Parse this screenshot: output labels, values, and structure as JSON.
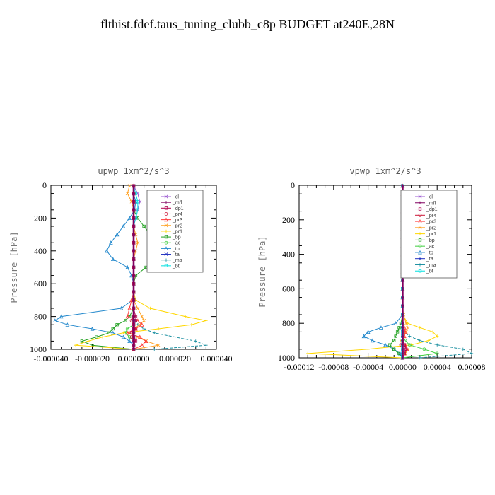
{
  "title": "flthist.fdef.taus_tuning_clubb_c8p  BUDGET at240E,28N",
  "legend_entries": [
    "_cl",
    "_mfl",
    "_dp1",
    "_pr4",
    "_pr3",
    "_pr2",
    "_pr1",
    "_bp",
    "_ac",
    "_tp",
    "_ta",
    "_ma",
    "_bt"
  ],
  "colors": {
    "_cl": "#9b59d0",
    "_mfl": "#800060",
    "_dp1": "#b00050",
    "_pr4": "#cc1a3a",
    "_pr3": "#ff3c3c",
    "_pr2": "#ffa020",
    "_pr1": "#ffd700",
    "_bp": "#20a020",
    "_ac": "#40d040",
    "_tp": "#2288cc",
    "_ta": "#2030c0",
    "_ma": "#1a8fa0",
    "_bt": "#00e0e0"
  },
  "chart_data": [
    {
      "type": "line",
      "title": "upwp   1xm^2/s^3",
      "ylabel": "Pressure [hPa]",
      "xlim": [
        -4e-05,
        4e-05
      ],
      "ylim": [
        1000,
        0
      ],
      "x_tick_labels": [
        "-0.000040",
        "-0.000020",
        "0.000000",
        "0.000020",
        "0.000040"
      ],
      "y_ticks": [
        0,
        200,
        400,
        600,
        800,
        1000
      ],
      "legend_position": "top-right",
      "pressure": [
        3,
        50,
        100,
        150,
        200,
        250,
        300,
        350,
        400,
        450,
        500,
        550,
        600,
        650,
        700,
        750,
        800,
        825,
        850,
        875,
        900,
        925,
        950,
        975,
        1000
      ],
      "series": [
        {
          "name": "_tp",
          "values": [
            0,
            0,
            1e-06,
            5e-07,
            -2e-06,
            -5e-06,
            -8e-06,
            -1.1e-05,
            -1.3e-05,
            -1e-05,
            -3e-06,
            -1e-06,
            0,
            0,
            -5e-07,
            -6e-06,
            -3.5e-05,
            -3.8e-05,
            -3.2e-05,
            -2e-05,
            -1e-05,
            -5e-06,
            -2e-06,
            0,
            0
          ]
        },
        {
          "name": "_bp",
          "values": [
            0,
            0,
            0,
            0,
            2e-06,
            5e-06,
            8e-06,
            1.3e-05,
            1.7e-05,
            1.5e-05,
            6e-06,
            1e-06,
            0,
            0,
            0,
            0,
            -2e-06,
            -4e-06,
            -8e-06,
            -1e-05,
            -1.2e-05,
            -1.8e-05,
            -2.5e-05,
            -2e-05,
            0
          ]
        },
        {
          "name": "_pr1",
          "values": [
            0,
            0,
            0,
            0,
            0,
            0,
            0,
            0,
            0,
            0,
            0,
            0,
            0,
            0,
            1e-06,
            8e-06,
            2.5e-05,
            3.5e-05,
            2.8e-05,
            1.2e-05,
            -5e-06,
            -1.5e-05,
            -2.2e-05,
            -2.8e-05,
            0
          ]
        },
        {
          "name": "_ma",
          "values": [
            0,
            0,
            0,
            0,
            0,
            0,
            0,
            0,
            0,
            0,
            0,
            0,
            0,
            0,
            0,
            0,
            0,
            0,
            2e-06,
            5e-06,
            1e-05,
            2e-05,
            3e-05,
            3.5e-05,
            1e-05
          ]
        },
        {
          "name": "_pr2",
          "values": [
            -2e-06,
            -3e-06,
            -1e-06,
            0,
            0,
            0,
            1e-06,
            2e-06,
            1e-06,
            0,
            0,
            0,
            0,
            0,
            0,
            2e-06,
            4e-06,
            5e-06,
            3e-06,
            0,
            -2e-06,
            2e-06,
            6e-06,
            1.2e-05,
            0
          ]
        },
        {
          "name": "_pr3",
          "values": [
            0,
            0,
            0,
            0,
            0,
            0,
            0,
            0,
            0,
            0,
            0,
            0,
            0,
            0,
            -1e-06,
            -2e-06,
            -3e-06,
            2e-06,
            4e-06,
            1e-06,
            -3e-06,
            3e-06,
            6e-06,
            4e-06,
            0
          ]
        },
        {
          "name": "_cl",
          "values": [
            0,
            2e-06,
            3e-06,
            2e-06,
            1e-06,
            0,
            0,
            0,
            0,
            0,
            0,
            0,
            0,
            0,
            0,
            0,
            0,
            0,
            0,
            0,
            0,
            0,
            0,
            0,
            0
          ]
        },
        {
          "name": "_ac",
          "values": [
            0,
            0,
            0,
            0,
            0,
            0,
            0,
            0,
            0,
            0,
            0,
            0,
            0,
            0,
            0,
            0,
            0,
            0,
            0,
            -3e-06,
            -4e-06,
            -2e-06,
            0,
            0,
            0
          ]
        },
        {
          "name": "_ta",
          "values": [
            0,
            0,
            0,
            0,
            0,
            0,
            0,
            0,
            0,
            0,
            0,
            0,
            0,
            0,
            0,
            0,
            0,
            0,
            0,
            0,
            0,
            0,
            0,
            0,
            0
          ]
        },
        {
          "name": "_bt",
          "values": [
            0,
            1e-06,
            2e-06,
            2e-06,
            1e-06,
            0,
            0,
            0,
            0,
            0,
            0,
            0,
            0,
            0,
            0,
            0,
            0,
            0,
            0,
            0,
            0,
            0,
            0,
            0,
            0
          ]
        },
        {
          "name": "_dp1",
          "values": [
            0,
            0,
            0,
            0,
            0,
            0,
            0,
            0,
            0,
            0,
            0,
            0,
            0,
            0,
            0,
            0,
            1e-06,
            1e-06,
            0,
            0,
            -1e-06,
            0,
            1e-06,
            0,
            0
          ]
        },
        {
          "name": "_pr4",
          "values": [
            0,
            0,
            0,
            0,
            0,
            0,
            0,
            0,
            0,
            0,
            0,
            0,
            0,
            0,
            0,
            0,
            0,
            -1e-06,
            0,
            1e-06,
            0,
            -1e-06,
            0,
            0,
            0
          ]
        },
        {
          "name": "_mfl",
          "values": [
            0,
            0,
            0,
            0,
            0,
            0,
            0,
            0,
            0,
            0,
            0,
            0,
            0,
            0,
            0,
            0,
            0,
            0,
            0,
            0,
            0,
            0,
            0,
            0,
            0
          ]
        }
      ]
    },
    {
      "type": "line",
      "title": "vpwp   1xm^2/s^3",
      "ylabel": "Pressure [hPa]",
      "xlim": [
        -0.00012,
        8e-05
      ],
      "ylim": [
        1000,
        0
      ],
      "x_tick_labels": [
        "-0.00012",
        "-0.00008",
        "-0.00004",
        "0.00000",
        "0.00004",
        "0.00008"
      ],
      "y_ticks": [
        0,
        200,
        400,
        600,
        800,
        1000
      ],
      "legend_position": "top-right",
      "pressure": [
        3,
        50,
        100,
        150,
        200,
        250,
        300,
        350,
        400,
        450,
        500,
        550,
        600,
        650,
        700,
        750,
        800,
        825,
        850,
        875,
        900,
        925,
        950,
        975,
        1000
      ],
      "series": [
        {
          "name": "_tp",
          "values": [
            0,
            0,
            0,
            0,
            0,
            0,
            0,
            0,
            0,
            0,
            0,
            0,
            0,
            0,
            0,
            0,
            -8e-06,
            -2.5e-05,
            -4e-05,
            -4.5e-05,
            -3.5e-05,
            -2e-05,
            -1e-05,
            -3e-06,
            0
          ]
        },
        {
          "name": "_pr1",
          "values": [
            0,
            0,
            0,
            0,
            0,
            0,
            0,
            0,
            0,
            0,
            0,
            0,
            0,
            0,
            0,
            0,
            6e-06,
            2e-05,
            3.5e-05,
            4e-05,
            3e-05,
            1e-05,
            -4e-05,
            -0.00011,
            0
          ]
        },
        {
          "name": "_ma",
          "values": [
            0,
            0,
            0,
            0,
            0,
            0,
            0,
            0,
            0,
            0,
            0,
            0,
            0,
            0,
            0,
            0,
            0,
            0,
            2e-06,
            8e-06,
            2e-05,
            4e-05,
            7e-05,
            8e-05,
            2e-05
          ]
        },
        {
          "name": "_bp",
          "values": [
            0,
            0,
            0,
            0,
            0,
            0,
            0,
            0,
            0,
            0,
            0,
            0,
            0,
            0,
            0,
            0,
            -2e-06,
            -4e-06,
            -6e-06,
            -8e-06,
            -1e-05,
            -1.5e-05,
            -1e-05,
            -5e-06,
            0
          ]
        },
        {
          "name": "_ac",
          "values": [
            0,
            0,
            0,
            0,
            0,
            0,
            0,
            0,
            0,
            0,
            0,
            0,
            0,
            0,
            0,
            0,
            0,
            0,
            0,
            0,
            3e-06,
            8e-06,
            2.5e-05,
            4e-05,
            0
          ]
        },
        {
          "name": "_pr2",
          "values": [
            0,
            0,
            0,
            0,
            0,
            0,
            0,
            0,
            0,
            0,
            0,
            0,
            0,
            0,
            0,
            1e-06,
            4e-06,
            6e-06,
            4e-06,
            1e-06,
            -2e-06,
            3e-06,
            6e-06,
            3e-06,
            0
          ]
        },
        {
          "name": "_pr3",
          "values": [
            0,
            0,
            0,
            0,
            0,
            0,
            0,
            0,
            0,
            0,
            0,
            0,
            0,
            0,
            0,
            0,
            0,
            2e-06,
            3e-06,
            2e-06,
            0,
            3e-06,
            5e-06,
            2e-06,
            0
          ]
        },
        {
          "name": "_dp1",
          "values": [
            0,
            0,
            0,
            0,
            0,
            0,
            0,
            0,
            0,
            0,
            0,
            0,
            0,
            0,
            0,
            0,
            0,
            0,
            0,
            0,
            0,
            2e-06,
            4e-06,
            2e-06,
            0
          ]
        },
        {
          "name": "_pr4",
          "values": [
            0,
            0,
            0,
            0,
            0,
            0,
            0,
            0,
            0,
            0,
            0,
            0,
            0,
            0,
            0,
            0,
            0,
            0,
            0,
            0,
            0,
            -2e-06,
            0,
            2e-06,
            0
          ]
        },
        {
          "name": "_cl",
          "values": [
            0,
            0,
            0,
            0,
            0,
            0,
            0,
            0,
            0,
            0,
            0,
            0,
            0,
            0,
            0,
            0,
            0,
            0,
            0,
            0,
            0,
            0,
            0,
            0,
            0
          ]
        },
        {
          "name": "_ta",
          "values": [
            0,
            0,
            0,
            0,
            0,
            0,
            0,
            0,
            0,
            0,
            0,
            0,
            0,
            0,
            0,
            0,
            0,
            0,
            0,
            0,
            0,
            0,
            0,
            0,
            0
          ]
        },
        {
          "name": "_bt",
          "values": [
            0,
            0,
            0,
            0,
            0,
            0,
            0,
            0,
            0,
            0,
            0,
            0,
            0,
            0,
            0,
            0,
            0,
            0,
            0,
            0,
            0,
            0,
            0,
            0,
            0
          ]
        },
        {
          "name": "_mfl",
          "values": [
            0,
            0,
            0,
            0,
            0,
            0,
            0,
            0,
            0,
            0,
            0,
            0,
            0,
            0,
            0,
            0,
            0,
            0,
            0,
            0,
            0,
            0,
            0,
            0,
            0
          ]
        }
      ]
    }
  ]
}
